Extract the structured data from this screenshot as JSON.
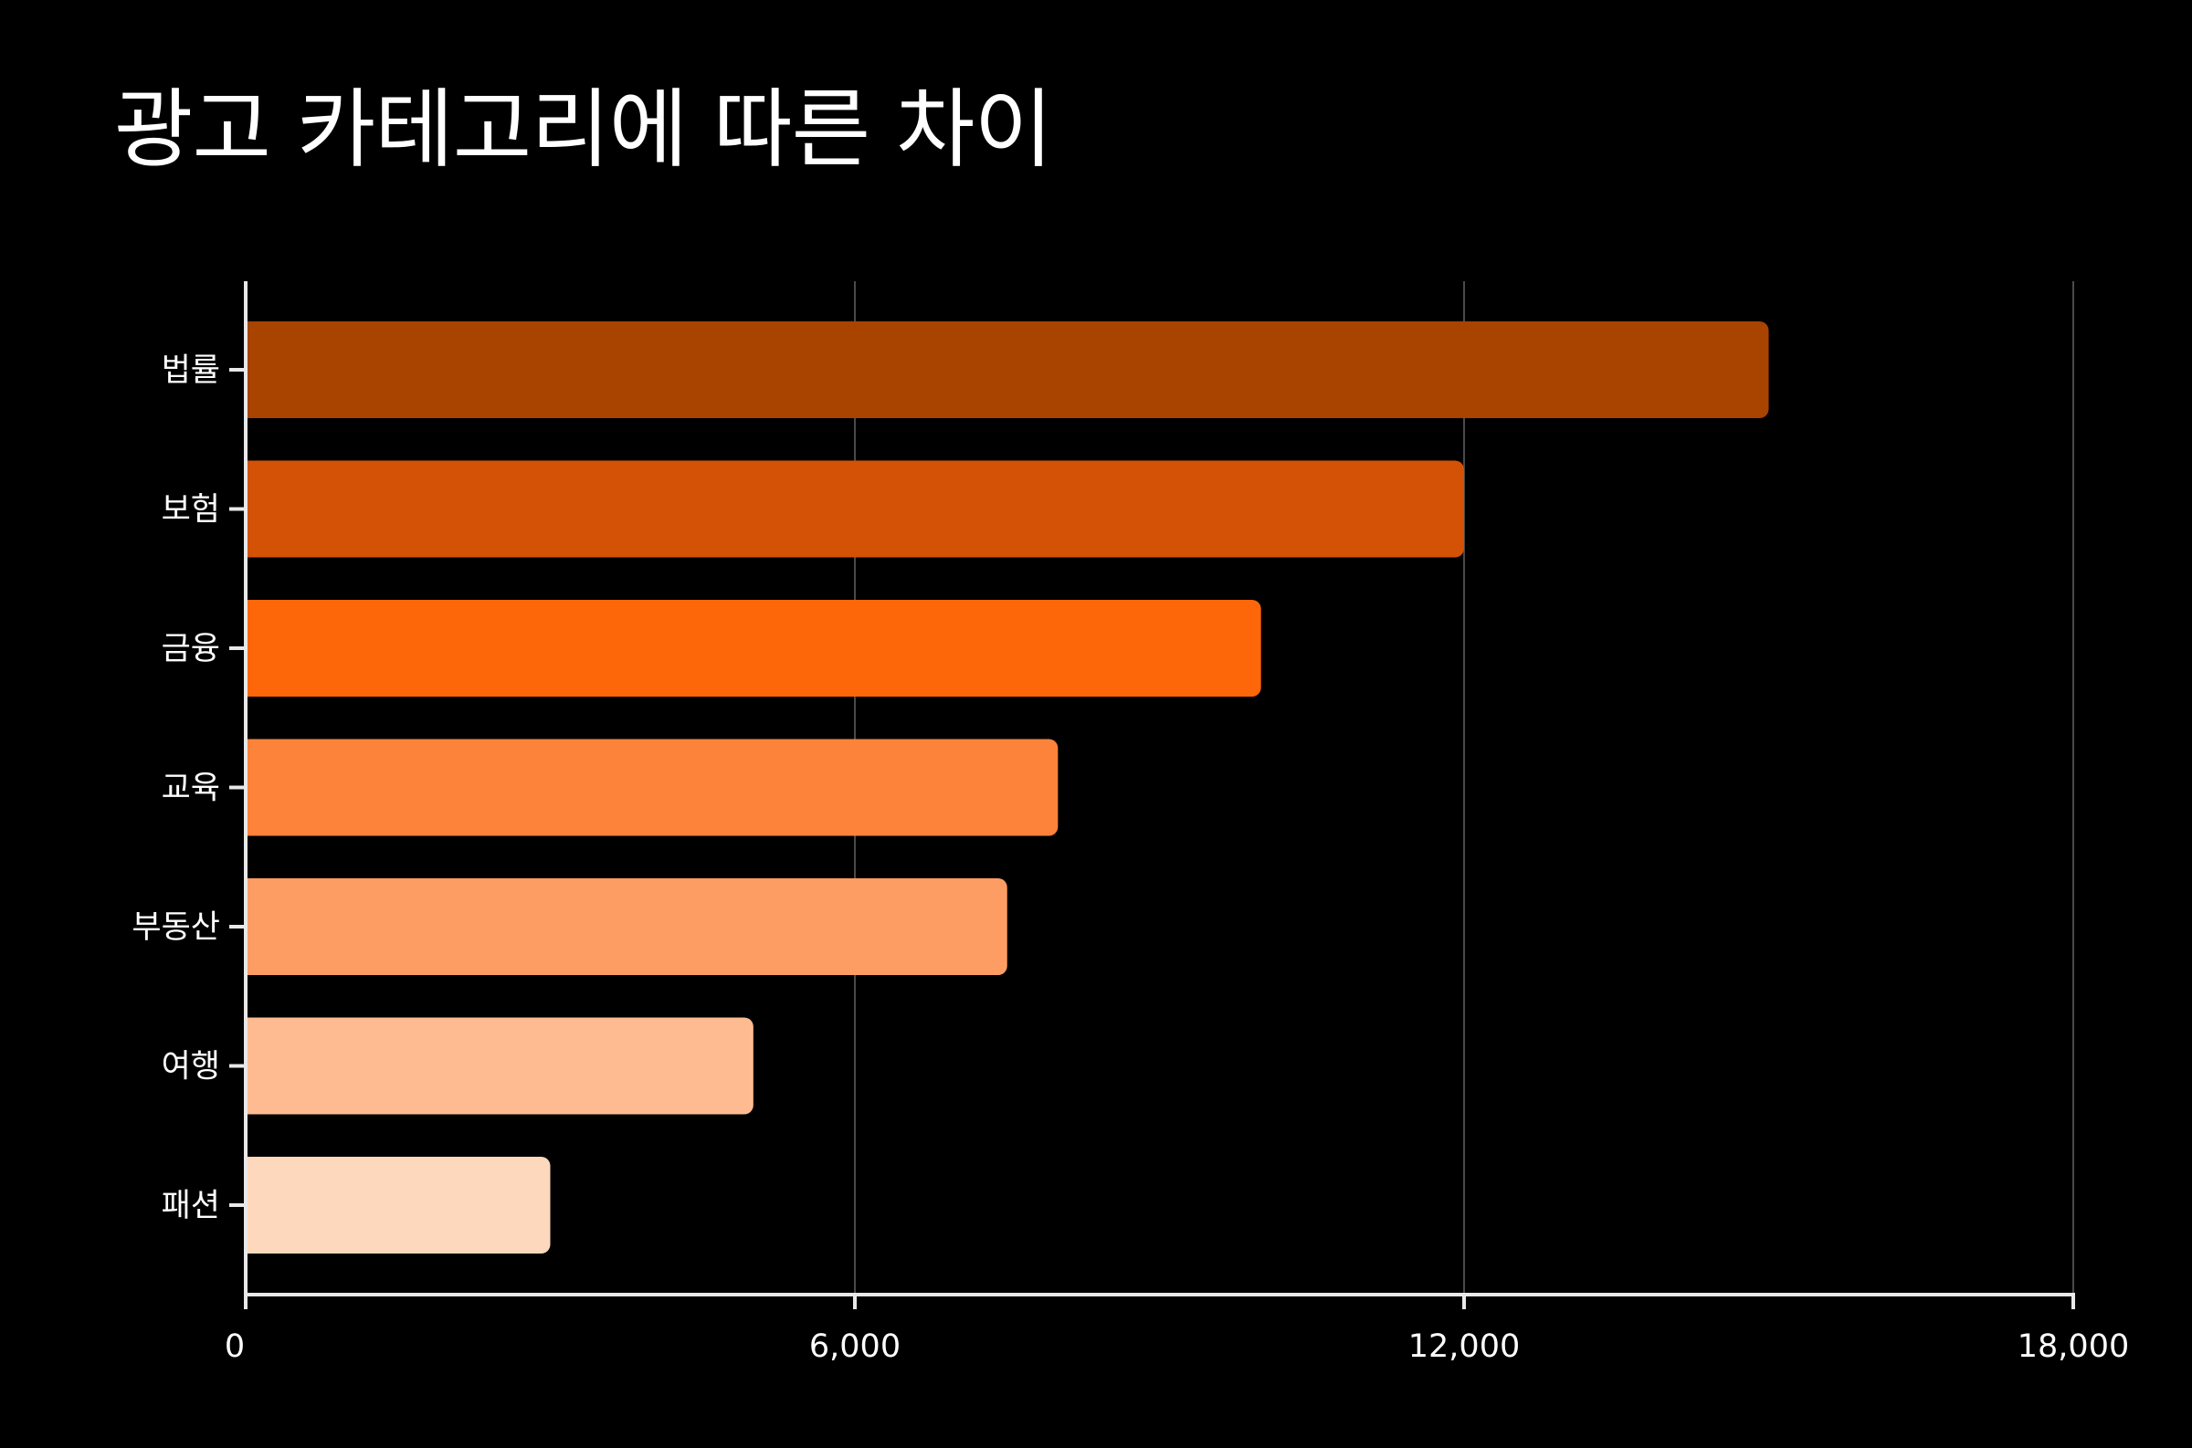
{
  "chart_data": {
    "type": "bar",
    "orientation": "horizontal",
    "title": "광고 카테고리에 따른 차이",
    "xlabel": "",
    "ylabel": "",
    "categories": [
      "법률",
      "보험",
      "금융",
      "교육",
      "부동산",
      "여행",
      "패션"
    ],
    "values": [
      15000,
      12000,
      10000,
      8000,
      7500,
      5000,
      3000
    ],
    "colors": [
      "#a84300",
      "#d35206",
      "#fe6709",
      "#fd823a",
      "#fd9d64",
      "#febb91",
      "#fdd8bd"
    ],
    "xlim": [
      0,
      18000
    ],
    "xticks": [
      "0",
      "6,000",
      "12,000",
      "18,000"
    ],
    "xtick_values": [
      0,
      6000,
      12000,
      18000
    ],
    "grid": "vertical",
    "background": "#000000",
    "text_color": "#ffffff"
  }
}
